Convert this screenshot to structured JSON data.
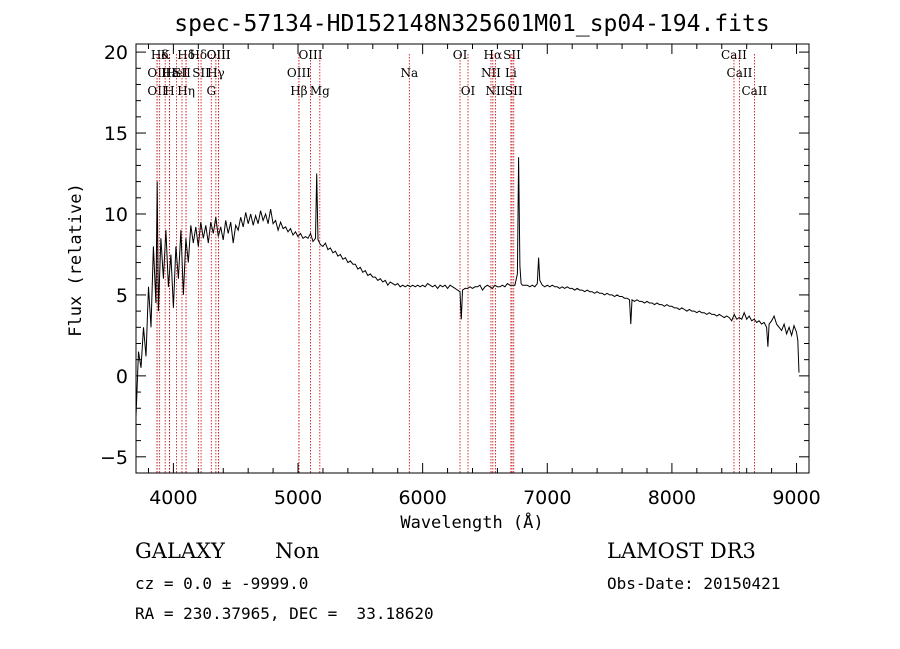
{
  "chart_data": {
    "type": "line",
    "title": "spec-57134-HD152148N325601M01_sp04-194.fits",
    "xlabel": "Wavelength (Å)",
    "ylabel": "Flux (relative)",
    "xlim": [
      3700,
      9100
    ],
    "ylim": [
      -6.0,
      20.5
    ],
    "xticks": [
      4000,
      5000,
      6000,
      7000,
      8000,
      9000
    ],
    "yticks": [
      -5,
      0,
      5,
      10,
      15,
      20
    ],
    "x_minor_step": 200,
    "y_minor_step": 1,
    "series": [
      {
        "name": "flux",
        "points": [
          [
            3700,
            -2.5
          ],
          [
            3720,
            1.5
          ],
          [
            3740,
            0.5
          ],
          [
            3760,
            3.0
          ],
          [
            3780,
            1.2
          ],
          [
            3800,
            5.5
          ],
          [
            3820,
            3.0
          ],
          [
            3840,
            8.0
          ],
          [
            3860,
            4.5
          ],
          [
            3870,
            12.0
          ],
          [
            3880,
            4.0
          ],
          [
            3900,
            8.5
          ],
          [
            3920,
            6.0
          ],
          [
            3940,
            9.0
          ],
          [
            3960,
            5.5
          ],
          [
            3980,
            7.5
          ],
          [
            4000,
            4.2
          ],
          [
            4020,
            8.0
          ],
          [
            4040,
            6.0
          ],
          [
            4060,
            9.0
          ],
          [
            4080,
            5.0
          ],
          [
            4100,
            8.5
          ],
          [
            4120,
            7.0
          ],
          [
            4140,
            9.3
          ],
          [
            4160,
            8.2
          ],
          [
            4180,
            9.2
          ],
          [
            4200,
            8.0
          ],
          [
            4220,
            9.5
          ],
          [
            4240,
            8.5
          ],
          [
            4260,
            9.3
          ],
          [
            4280,
            8.2
          ],
          [
            4300,
            9.5
          ],
          [
            4320,
            8.8
          ],
          [
            4340,
            9.8
          ],
          [
            4360,
            8.6
          ],
          [
            4380,
            9.2
          ],
          [
            4400,
            8.4
          ],
          [
            4420,
            9.6
          ],
          [
            4440,
            8.8
          ],
          [
            4460,
            9.5
          ],
          [
            4480,
            8.2
          ],
          [
            4500,
            9.3
          ],
          [
            4520,
            9.0
          ],
          [
            4540,
            9.8
          ],
          [
            4560,
            9.2
          ],
          [
            4580,
            10.1
          ],
          [
            4600,
            9.4
          ],
          [
            4620,
            10.0
          ],
          [
            4640,
            9.3
          ],
          [
            4660,
            9.9
          ],
          [
            4680,
            9.4
          ],
          [
            4700,
            10.2
          ],
          [
            4720,
            9.6
          ],
          [
            4740,
            10.0
          ],
          [
            4760,
            9.4
          ],
          [
            4780,
            10.3
          ],
          [
            4800,
            9.4
          ],
          [
            4820,
            9.6
          ],
          [
            4840,
            9.0
          ],
          [
            4860,
            9.5
          ],
          [
            4880,
            9.1
          ],
          [
            4900,
            9.2
          ],
          [
            4920,
            8.9
          ],
          [
            4940,
            9.1
          ],
          [
            4960,
            8.7
          ],
          [
            4980,
            8.9
          ],
          [
            5000,
            8.6
          ],
          [
            5020,
            8.8
          ],
          [
            5040,
            8.5
          ],
          [
            5060,
            8.6
          ],
          [
            5080,
            8.5
          ],
          [
            5100,
            8.8
          ],
          [
            5120,
            8.3
          ],
          [
            5140,
            8.5
          ],
          [
            5150,
            12.5
          ],
          [
            5160,
            8.4
          ],
          [
            5180,
            8.1
          ],
          [
            5200,
            8.0
          ],
          [
            5220,
            8.2
          ],
          [
            5240,
            7.8
          ],
          [
            5260,
            7.9
          ],
          [
            5280,
            7.6
          ],
          [
            5300,
            7.7
          ],
          [
            5320,
            7.4
          ],
          [
            5340,
            7.5
          ],
          [
            5360,
            7.2
          ],
          [
            5380,
            7.3
          ],
          [
            5400,
            7.0
          ],
          [
            5420,
            7.1
          ],
          [
            5440,
            6.9
          ],
          [
            5460,
            6.9
          ],
          [
            5480,
            6.6
          ],
          [
            5500,
            6.7
          ],
          [
            5520,
            6.4
          ],
          [
            5540,
            6.5
          ],
          [
            5560,
            6.2
          ],
          [
            5580,
            6.3
          ],
          [
            5600,
            6.1
          ],
          [
            5620,
            6.1
          ],
          [
            5640,
            5.9
          ],
          [
            5660,
            6.0
          ],
          [
            5680,
            5.8
          ],
          [
            5700,
            5.9
          ],
          [
            5720,
            5.6
          ],
          [
            5740,
            5.8
          ],
          [
            5760,
            5.7
          ],
          [
            5780,
            5.6
          ],
          [
            5800,
            5.7
          ],
          [
            5820,
            5.5
          ],
          [
            5840,
            5.6
          ],
          [
            5860,
            5.5
          ],
          [
            5880,
            5.6
          ],
          [
            5900,
            5.5
          ],
          [
            5920,
            5.6
          ],
          [
            5940,
            5.5
          ],
          [
            5960,
            5.6
          ],
          [
            5980,
            5.5
          ],
          [
            6000,
            5.6
          ],
          [
            6020,
            5.5
          ],
          [
            6040,
            5.7
          ],
          [
            6060,
            5.6
          ],
          [
            6080,
            5.5
          ],
          [
            6100,
            5.6
          ],
          [
            6120,
            5.4
          ],
          [
            6140,
            5.6
          ],
          [
            6160,
            5.5
          ],
          [
            6180,
            5.6
          ],
          [
            6200,
            5.4
          ],
          [
            6220,
            5.6
          ],
          [
            6240,
            5.5
          ],
          [
            6260,
            5.4
          ],
          [
            6280,
            5.3
          ],
          [
            6300,
            5.2
          ],
          [
            6310,
            3.5
          ],
          [
            6320,
            5.3
          ],
          [
            6340,
            5.4
          ],
          [
            6360,
            5.4
          ],
          [
            6380,
            5.5
          ],
          [
            6400,
            5.4
          ],
          [
            6420,
            5.5
          ],
          [
            6440,
            5.5
          ],
          [
            6460,
            5.6
          ],
          [
            6480,
            5.3
          ],
          [
            6500,
            5.5
          ],
          [
            6520,
            5.6
          ],
          [
            6540,
            5.5
          ],
          [
            6560,
            5.4
          ],
          [
            6580,
            5.6
          ],
          [
            6600,
            5.5
          ],
          [
            6620,
            5.5
          ],
          [
            6640,
            5.6
          ],
          [
            6660,
            5.5
          ],
          [
            6680,
            5.7
          ],
          [
            6700,
            5.6
          ],
          [
            6720,
            5.6
          ],
          [
            6740,
            5.6
          ],
          [
            6760,
            6.3
          ],
          [
            6770,
            13.5
          ],
          [
            6780,
            6.8
          ],
          [
            6790,
            5.7
          ],
          [
            6800,
            5.6
          ],
          [
            6820,
            5.6
          ],
          [
            6840,
            5.6
          ],
          [
            6860,
            5.5
          ],
          [
            6880,
            5.6
          ],
          [
            6900,
            5.5
          ],
          [
            6920,
            5.7
          ],
          [
            6930,
            7.3
          ],
          [
            6940,
            5.9
          ],
          [
            6960,
            5.6
          ],
          [
            6980,
            5.5
          ],
          [
            7000,
            5.6
          ],
          [
            7020,
            5.5
          ],
          [
            7040,
            5.6
          ],
          [
            7060,
            5.5
          ],
          [
            7080,
            5.5
          ],
          [
            7100,
            5.4
          ],
          [
            7120,
            5.5
          ],
          [
            7140,
            5.4
          ],
          [
            7160,
            5.5
          ],
          [
            7180,
            5.4
          ],
          [
            7200,
            5.4
          ],
          [
            7220,
            5.3
          ],
          [
            7240,
            5.4
          ],
          [
            7260,
            5.3
          ],
          [
            7280,
            5.3
          ],
          [
            7300,
            5.2
          ],
          [
            7320,
            5.3
          ],
          [
            7340,
            5.2
          ],
          [
            7360,
            5.2
          ],
          [
            7380,
            5.1
          ],
          [
            7400,
            5.2
          ],
          [
            7420,
            5.1
          ],
          [
            7440,
            5.1
          ],
          [
            7460,
            5.0
          ],
          [
            7480,
            5.1
          ],
          [
            7500,
            5.0
          ],
          [
            7520,
            5.0
          ],
          [
            7540,
            4.9
          ],
          [
            7560,
            5.0
          ],
          [
            7580,
            4.9
          ],
          [
            7600,
            4.9
          ],
          [
            7620,
            4.8
          ],
          [
            7640,
            4.8
          ],
          [
            7660,
            4.7
          ],
          [
            7670,
            3.2
          ],
          [
            7680,
            4.7
          ],
          [
            7700,
            4.6
          ],
          [
            7720,
            4.7
          ],
          [
            7740,
            4.6
          ],
          [
            7760,
            4.6
          ],
          [
            7780,
            4.5
          ],
          [
            7800,
            4.6
          ],
          [
            7820,
            4.5
          ],
          [
            7840,
            4.5
          ],
          [
            7860,
            4.4
          ],
          [
            7880,
            4.5
          ],
          [
            7900,
            4.4
          ],
          [
            7920,
            4.4
          ],
          [
            7940,
            4.3
          ],
          [
            7960,
            4.4
          ],
          [
            7980,
            4.3
          ],
          [
            8000,
            4.3
          ],
          [
            8020,
            4.2
          ],
          [
            8040,
            4.2
          ],
          [
            8060,
            4.1
          ],
          [
            8080,
            4.2
          ],
          [
            8100,
            4.1
          ],
          [
            8120,
            4.0
          ],
          [
            8140,
            4.1
          ],
          [
            8160,
            4.0
          ],
          [
            8180,
            4.0
          ],
          [
            8200,
            3.9
          ],
          [
            8220,
            4.0
          ],
          [
            8240,
            3.9
          ],
          [
            8260,
            3.9
          ],
          [
            8280,
            3.8
          ],
          [
            8300,
            3.9
          ],
          [
            8320,
            3.8
          ],
          [
            8340,
            3.8
          ],
          [
            8360,
            3.7
          ],
          [
            8380,
            3.8
          ],
          [
            8400,
            3.7
          ],
          [
            8420,
            3.6
          ],
          [
            8440,
            3.7
          ],
          [
            8460,
            3.6
          ],
          [
            8480,
            3.4
          ],
          [
            8500,
            3.8
          ],
          [
            8520,
            3.5
          ],
          [
            8540,
            3.6
          ],
          [
            8560,
            3.5
          ],
          [
            8580,
            3.9
          ],
          [
            8600,
            3.5
          ],
          [
            8620,
            3.7
          ],
          [
            8640,
            3.4
          ],
          [
            8660,
            3.5
          ],
          [
            8680,
            3.3
          ],
          [
            8700,
            3.4
          ],
          [
            8720,
            3.2
          ],
          [
            8740,
            3.3
          ],
          [
            8760,
            3.0
          ],
          [
            8770,
            1.8
          ],
          [
            8780,
            3.2
          ],
          [
            8800,
            3.4
          ],
          [
            8820,
            3.7
          ],
          [
            8840,
            3.2
          ],
          [
            8860,
            3.0
          ],
          [
            8880,
            2.8
          ],
          [
            8900,
            3.2
          ],
          [
            8920,
            2.6
          ],
          [
            8940,
            3.0
          ],
          [
            8960,
            2.5
          ],
          [
            8980,
            3.1
          ],
          [
            9000,
            2.7
          ],
          [
            9010,
            2.2
          ],
          [
            9020,
            0.2
          ]
        ]
      }
    ],
    "line_markers": [
      {
        "x": 3869,
        "label": "OII",
        "row": 1
      },
      {
        "x": 3869,
        "label": "OII",
        "row": 2
      },
      {
        "x": 3890,
        "label": "Hδ",
        "row": 0
      },
      {
        "x": 3934,
        "label": "K",
        "row": 0
      },
      {
        "x": 3969,
        "label": "H",
        "row": 2
      },
      {
        "x": 3970,
        "label": "Hε",
        "row": 1
      },
      {
        "x": 4026,
        "label": "HeI",
        "row": 1
      },
      {
        "x": 4069,
        "label": "SII",
        "row": 1
      },
      {
        "x": 4102,
        "label": "Hδ",
        "row": 0
      },
      {
        "x": 4102,
        "label": "Hη",
        "row": 2
      },
      {
        "x": 4200,
        "label": "Hδ",
        "row": 0
      },
      {
        "x": 4222,
        "label": "SII",
        "row": 1
      },
      {
        "x": 4304,
        "label": "G",
        "row": 2
      },
      {
        "x": 4341,
        "label": "Hγ",
        "row": 1
      },
      {
        "x": 4363,
        "label": "OIII",
        "row": 0
      },
      {
        "x": 4363,
        "label": "OIII",
        "row": 0
      },
      {
        "x": 5007,
        "label": "Hβ",
        "row": 2
      },
      {
        "x": 5007,
        "label": "OIII",
        "row": 1
      },
      {
        "x": 5100,
        "label": "OIII",
        "row": 0
      },
      {
        "x": 5175,
        "label": "Mg",
        "row": 2
      },
      {
        "x": 5893,
        "label": "Na",
        "row": 1
      },
      {
        "x": 6300,
        "label": "OI",
        "row": 0
      },
      {
        "x": 6364,
        "label": "OI",
        "row": 2
      },
      {
        "x": 6548,
        "label": "NII",
        "row": 1
      },
      {
        "x": 6563,
        "label": "Hα",
        "row": 0
      },
      {
        "x": 6584,
        "label": "NII",
        "row": 2
      },
      {
        "x": 6708,
        "label": "Li",
        "row": 1
      },
      {
        "x": 6717,
        "label": "SII",
        "row": 0
      },
      {
        "x": 6731,
        "label": "SII",
        "row": 2
      },
      {
        "x": 8498,
        "label": "CaII",
        "row": 0
      },
      {
        "x": 8542,
        "label": "CaII",
        "row": 1
      },
      {
        "x": 8662,
        "label": "CaII",
        "row": 2
      }
    ]
  },
  "info": {
    "object_class": "GALAXY",
    "subclass": "Non",
    "survey": "LAMOST DR3",
    "redshift": "cz = 0.0 ± -9999.0",
    "obs_date": "Obs-Date: 20150421",
    "coords": "RA = 230.37965, DEC =  33.18620"
  },
  "colors": {
    "spectrum": "#000000",
    "marker": "#cc0000",
    "axes": "#000000"
  }
}
